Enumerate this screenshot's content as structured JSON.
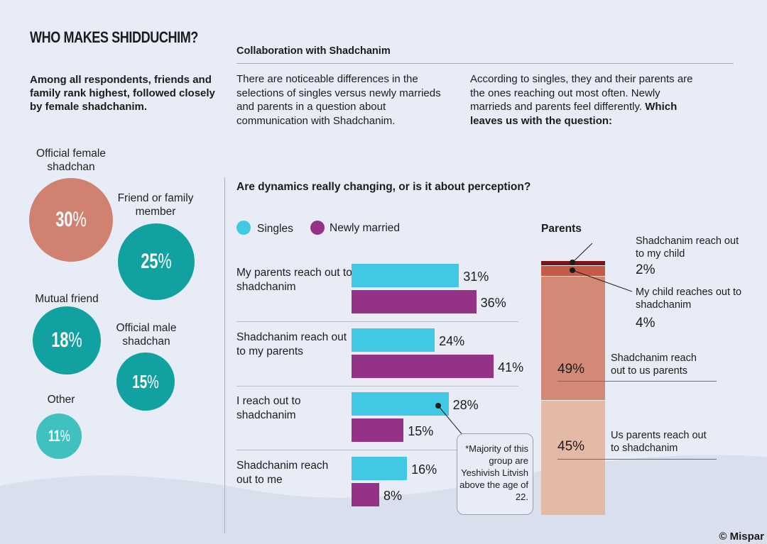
{
  "title": "WHO MAKES SHIDDUCHIM?",
  "intro": "Among all respondents, friends and family rank highest, followed closely by female shadchanim.",
  "bubbles": [
    {
      "label": "Official female shadchan",
      "value": "30",
      "pct": 30,
      "color": "#d1816f"
    },
    {
      "label": "Friend or family member",
      "value": "25",
      "pct": 25,
      "color": "#11a1a1"
    },
    {
      "label": "Mutual friend",
      "value": "18",
      "pct": 18,
      "color": "#11a1a1"
    },
    {
      "label": "Official male shadchan",
      "value": "15",
      "pct": 15,
      "color": "#11a1a1"
    },
    {
      "label": "Other",
      "value": "11",
      "pct": 11,
      "color": "#41c0c0"
    }
  ],
  "percent_sign": "%",
  "collab": {
    "heading": "Collaboration with Shadchanim",
    "para1": "There are noticeable differences in the selections of singles versus newly marrieds and parents in a question about communication with Shadchanim.",
    "para2": "According to singles, they and their parents are the ones reaching out most often. Newly marrieds and parents feel differently.",
    "para2_bold": "Which leaves us with the question:"
  },
  "question": "Are dynamics really changing, or is it about perception?",
  "note": "*Majority of this group are Yeshivish Litvish above the age of 22.",
  "copyright": "© Mispar",
  "chart_data": [
    {
      "type": "bar",
      "orientation": "horizontal",
      "categories": [
        "My parents reach out to shadchanim",
        "Shadchanim reach out to my parents",
        "I reach out to shadchanim",
        "Shadchanim reach out to me"
      ],
      "series": [
        {
          "name": "Singles",
          "color": "#41c8e4",
          "values": [
            31,
            24,
            28,
            16
          ]
        },
        {
          "name": "Newly married",
          "color": "#943386",
          "values": [
            36,
            41,
            15,
            8
          ]
        }
      ],
      "value_suffix": "%",
      "legend": "top-left"
    },
    {
      "type": "bar",
      "stacked": true,
      "title": "Parents",
      "segments": [
        {
          "label": "Us parents reach out to shadchanim",
          "value": 45,
          "color": "#e4b9a5"
        },
        {
          "label": "Shadchanim reach out to us parents",
          "value": 49,
          "color": "#d28a76"
        },
        {
          "label": "My child reaches out to shadchanim",
          "value": 4,
          "color": "#c55b47"
        },
        {
          "label": "Shadchanim reach out to my child",
          "value": 2,
          "color": "#7a1418"
        }
      ],
      "value_suffix": "%"
    }
  ]
}
